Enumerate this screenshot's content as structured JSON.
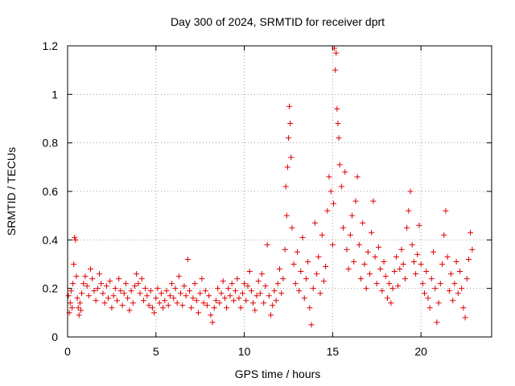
{
  "chart_data": {
    "type": "scatter",
    "title": "Day 300 of 2024, SRMTID for receiver dprt",
    "xlabel": "GPS time / hours",
    "ylabel": "SRMTID / TECUs",
    "xlim": [
      0,
      24
    ],
    "ylim": [
      0,
      1.2
    ],
    "xticks": [
      0,
      5,
      10,
      15,
      20
    ],
    "xtick_labels": [
      "0",
      "5",
      "10",
      "15",
      "20"
    ],
    "yticks": [
      0,
      0.2,
      0.4,
      0.6,
      0.8,
      1.0,
      1.2
    ],
    "ytick_labels": [
      "0",
      "0.2",
      "0.4",
      "0.6",
      "0.8",
      "1",
      "1.2"
    ],
    "grid": true,
    "marker": "+",
    "marker_color": "#e00000",
    "series": [
      {
        "name": "SRMTID",
        "points": [
          [
            0.05,
            0.17
          ],
          [
            0.1,
            0.1
          ],
          [
            0.15,
            0.14
          ],
          [
            0.2,
            0.19
          ],
          [
            0.25,
            0.12
          ],
          [
            0.3,
            0.22
          ],
          [
            0.35,
            0.3
          ],
          [
            0.4,
            0.41
          ],
          [
            0.45,
            0.4
          ],
          [
            0.5,
            0.25
          ],
          [
            0.55,
            0.16
          ],
          [
            0.6,
            0.12
          ],
          [
            0.65,
            0.09
          ],
          [
            0.7,
            0.14
          ],
          [
            0.75,
            0.11
          ],
          [
            0.8,
            0.18
          ],
          [
            0.9,
            0.22
          ],
          [
            1.0,
            0.25
          ],
          [
            1.1,
            0.21
          ],
          [
            1.2,
            0.17
          ],
          [
            1.3,
            0.28
          ],
          [
            1.4,
            0.24
          ],
          [
            1.5,
            0.19
          ],
          [
            1.6,
            0.15
          ],
          [
            1.7,
            0.2
          ],
          [
            1.8,
            0.26
          ],
          [
            1.9,
            0.22
          ],
          [
            2.0,
            0.18
          ],
          [
            2.1,
            0.14
          ],
          [
            2.2,
            0.21
          ],
          [
            2.3,
            0.16
          ],
          [
            2.4,
            0.23
          ],
          [
            2.5,
            0.12
          ],
          [
            2.6,
            0.17
          ],
          [
            2.7,
            0.2
          ],
          [
            2.8,
            0.15
          ],
          [
            2.9,
            0.24
          ],
          [
            3.0,
            0.19
          ],
          [
            3.1,
            0.13
          ],
          [
            3.2,
            0.18
          ],
          [
            3.3,
            0.22
          ],
          [
            3.4,
            0.16
          ],
          [
            3.5,
            0.11
          ],
          [
            3.6,
            0.19
          ],
          [
            3.7,
            0.14
          ],
          [
            3.8,
            0.21
          ],
          [
            3.9,
            0.26
          ],
          [
            4.0,
            0.22
          ],
          [
            4.1,
            0.18
          ],
          [
            4.2,
            0.24
          ],
          [
            4.3,
            0.15
          ],
          [
            4.4,
            0.2
          ],
          [
            4.5,
            0.17
          ],
          [
            4.6,
            0.13
          ],
          [
            4.7,
            0.19
          ],
          [
            4.8,
            0.12
          ],
          [
            4.9,
            0.1
          ],
          [
            5.0,
            0.16
          ],
          [
            5.1,
            0.2
          ],
          [
            5.2,
            0.14
          ],
          [
            5.3,
            0.18
          ],
          [
            5.4,
            0.12
          ],
          [
            5.5,
            0.15
          ],
          [
            5.6,
            0.19
          ],
          [
            5.7,
            0.13
          ],
          [
            5.8,
            0.17
          ],
          [
            5.9,
            0.22
          ],
          [
            6.0,
            0.16
          ],
          [
            6.1,
            0.2
          ],
          [
            6.2,
            0.14
          ],
          [
            6.3,
            0.25
          ],
          [
            6.4,
            0.18
          ],
          [
            6.5,
            0.13
          ],
          [
            6.6,
            0.21
          ],
          [
            6.7,
            0.17
          ],
          [
            6.8,
            0.32
          ],
          [
            6.9,
            0.19
          ],
          [
            7.0,
            0.12
          ],
          [
            7.1,
            0.16
          ],
          [
            7.2,
            0.22
          ],
          [
            7.3,
            0.15
          ],
          [
            7.4,
            0.1
          ],
          [
            7.5,
            0.18
          ],
          [
            7.6,
            0.24
          ],
          [
            7.7,
            0.14
          ],
          [
            7.8,
            0.19
          ],
          [
            7.9,
            0.13
          ],
          [
            8.0,
            0.17
          ],
          [
            8.1,
            0.09
          ],
          [
            8.2,
            0.06
          ],
          [
            8.3,
            0.12
          ],
          [
            8.4,
            0.15
          ],
          [
            8.5,
            0.2
          ],
          [
            8.6,
            0.14
          ],
          [
            8.7,
            0.18
          ],
          [
            8.8,
            0.23
          ],
          [
            8.9,
            0.16
          ],
          [
            9.0,
            0.12
          ],
          [
            9.1,
            0.2
          ],
          [
            9.2,
            0.17
          ],
          [
            9.3,
            0.22
          ],
          [
            9.4,
            0.15
          ],
          [
            9.5,
            0.19
          ],
          [
            9.6,
            0.24
          ],
          [
            9.7,
            0.16
          ],
          [
            9.8,
            0.12
          ],
          [
            9.9,
            0.18
          ],
          [
            10.0,
            0.22
          ],
          [
            10.1,
            0.15
          ],
          [
            10.2,
            0.21
          ],
          [
            10.3,
            0.27
          ],
          [
            10.4,
            0.19
          ],
          [
            10.5,
            0.14
          ],
          [
            10.6,
            0.11
          ],
          [
            10.7,
            0.17
          ],
          [
            10.8,
            0.23
          ],
          [
            10.9,
            0.18
          ],
          [
            11.0,
            0.26
          ],
          [
            11.1,
            0.14
          ],
          [
            11.2,
            0.21
          ],
          [
            11.3,
            0.38
          ],
          [
            11.4,
            0.17
          ],
          [
            11.5,
            0.09
          ],
          [
            11.6,
            0.13
          ],
          [
            11.7,
            0.19
          ],
          [
            11.8,
            0.15
          ],
          [
            11.9,
            0.22
          ],
          [
            12.0,
            0.28
          ],
          [
            12.1,
            0.18
          ],
          [
            12.2,
            0.24
          ],
          [
            12.3,
            0.36
          ],
          [
            12.35,
            0.62
          ],
          [
            12.4,
            0.5
          ],
          [
            12.45,
            0.7
          ],
          [
            12.5,
            0.82
          ],
          [
            12.55,
            0.95
          ],
          [
            12.6,
            0.88
          ],
          [
            12.65,
            0.74
          ],
          [
            12.7,
            0.45
          ],
          [
            12.8,
            0.3
          ],
          [
            12.9,
            0.22
          ],
          [
            13.0,
            0.35
          ],
          [
            13.1,
            0.19
          ],
          [
            13.2,
            0.27
          ],
          [
            13.3,
            0.41
          ],
          [
            13.4,
            0.16
          ],
          [
            13.5,
            0.24
          ],
          [
            13.6,
            0.31
          ],
          [
            13.7,
            0.12
          ],
          [
            13.8,
            0.05
          ],
          [
            13.9,
            0.2
          ],
          [
            14.0,
            0.47
          ],
          [
            14.1,
            0.26
          ],
          [
            14.2,
            0.33
          ],
          [
            14.3,
            0.18
          ],
          [
            14.4,
            0.42
          ],
          [
            14.5,
            0.23
          ],
          [
            14.6,
            0.29
          ],
          [
            14.7,
            0.52
          ],
          [
            14.8,
            0.66
          ],
          [
            14.9,
            0.6
          ],
          [
            15.0,
            0.38
          ],
          [
            15.05,
            0.55
          ],
          [
            15.1,
            1.19
          ],
          [
            15.15,
            1.1
          ],
          [
            15.2,
            1.17
          ],
          [
            15.25,
            0.94
          ],
          [
            15.3,
            0.88
          ],
          [
            15.35,
            0.82
          ],
          [
            15.4,
            0.71
          ],
          [
            15.5,
            0.62
          ],
          [
            15.6,
            0.45
          ],
          [
            15.7,
            0.68
          ],
          [
            15.8,
            0.36
          ],
          [
            15.9,
            0.28
          ],
          [
            16.0,
            0.42
          ],
          [
            16.1,
            0.5
          ],
          [
            16.2,
            0.31
          ],
          [
            16.3,
            0.56
          ],
          [
            16.4,
            0.66
          ],
          [
            16.5,
            0.38
          ],
          [
            16.6,
            0.24
          ],
          [
            16.7,
            0.47
          ],
          [
            16.8,
            0.3
          ],
          [
            16.9,
            0.2
          ],
          [
            17.0,
            0.35
          ],
          [
            17.1,
            0.26
          ],
          [
            17.2,
            0.43
          ],
          [
            17.3,
            0.56
          ],
          [
            17.4,
            0.33
          ],
          [
            17.5,
            0.22
          ],
          [
            17.6,
            0.37
          ],
          [
            17.7,
            0.28
          ],
          [
            17.8,
            0.19
          ],
          [
            17.9,
            0.31
          ],
          [
            18.0,
            0.25
          ],
          [
            18.1,
            0.16
          ],
          [
            18.2,
            0.22
          ],
          [
            18.3,
            0.14
          ],
          [
            18.4,
            0.2
          ],
          [
            18.5,
            0.27
          ],
          [
            18.6,
            0.33
          ],
          [
            18.7,
            0.21
          ],
          [
            18.8,
            0.28
          ],
          [
            18.9,
            0.36
          ],
          [
            19.0,
            0.3
          ],
          [
            19.1,
            0.24
          ],
          [
            19.2,
            0.45
          ],
          [
            19.3,
            0.52
          ],
          [
            19.4,
            0.6
          ],
          [
            19.5,
            0.38
          ],
          [
            19.6,
            0.31
          ],
          [
            19.7,
            0.26
          ],
          [
            19.8,
            0.34
          ],
          [
            19.9,
            0.46
          ],
          [
            20.0,
            0.3
          ],
          [
            20.1,
            0.22
          ],
          [
            20.2,
            0.18
          ],
          [
            20.3,
            0.27
          ],
          [
            20.4,
            0.16
          ],
          [
            20.5,
            0.12
          ],
          [
            20.6,
            0.24
          ],
          [
            20.7,
            0.35
          ],
          [
            20.8,
            0.2
          ],
          [
            20.9,
            0.06
          ],
          [
            21.0,
            0.14
          ],
          [
            21.1,
            0.22
          ],
          [
            21.2,
            0.3
          ],
          [
            21.3,
            0.42
          ],
          [
            21.4,
            0.52
          ],
          [
            21.5,
            0.33
          ],
          [
            21.6,
            0.19
          ],
          [
            21.7,
            0.26
          ],
          [
            21.8,
            0.15
          ],
          [
            21.9,
            0.22
          ],
          [
            22.0,
            0.31
          ],
          [
            22.1,
            0.18
          ],
          [
            22.2,
            0.27
          ],
          [
            22.3,
            0.2
          ],
          [
            22.4,
            0.12
          ],
          [
            22.5,
            0.08
          ],
          [
            22.6,
            0.24
          ],
          [
            22.7,
            0.32
          ],
          [
            22.8,
            0.43
          ],
          [
            22.9,
            0.36
          ]
        ]
      }
    ]
  }
}
